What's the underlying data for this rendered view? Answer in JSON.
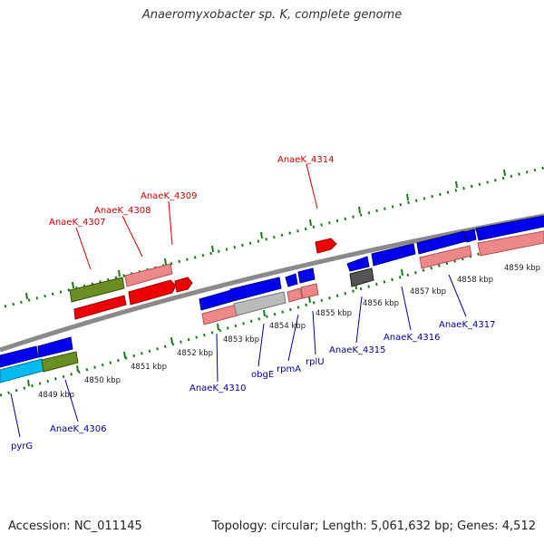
{
  "title": "Anaeromyxobacter sp. K, complete genome",
  "footer": {
    "accession": "Accession: NC_011145",
    "summary": "Topology: circular; Length: 5,061,632 bp; Genes: 4,512"
  },
  "colors": {
    "backbone": "#888888",
    "tick": "#1a7a1a",
    "red": "#ee0000",
    "pink": "#ee8888",
    "olive": "#6b8e23",
    "blue": "#0000ee",
    "cyan": "#00bbee",
    "grey": "#bbbbbb",
    "dark": "#555555",
    "label_top": "#cc0000",
    "label_bottom": "#000099"
  },
  "kbp_ticks": [
    "4849 kbp",
    "4850 kbp",
    "4851 kbp",
    "4852 kbp",
    "4853 kbp",
    "4854 kbp",
    "4855 kbp",
    "4856 kbp",
    "4857 kbp",
    "4858 kbp",
    "4859 kbp"
  ],
  "top_labels": [
    {
      "text": "AnaeK_4307"
    },
    {
      "text": "AnaeK_4308"
    },
    {
      "text": "AnaeK_4309"
    },
    {
      "text": "AnaeK_4314"
    }
  ],
  "bottom_labels": [
    {
      "text": "pyrG"
    },
    {
      "text": "AnaeK_4306"
    },
    {
      "text": "AnaeK_4310"
    },
    {
      "text": "obgE"
    },
    {
      "text": "rpmA"
    },
    {
      "text": "rplU"
    },
    {
      "text": "AnaeK_4315"
    },
    {
      "text": "AnaeK_4316"
    },
    {
      "text": "AnaeK_4317"
    }
  ]
}
